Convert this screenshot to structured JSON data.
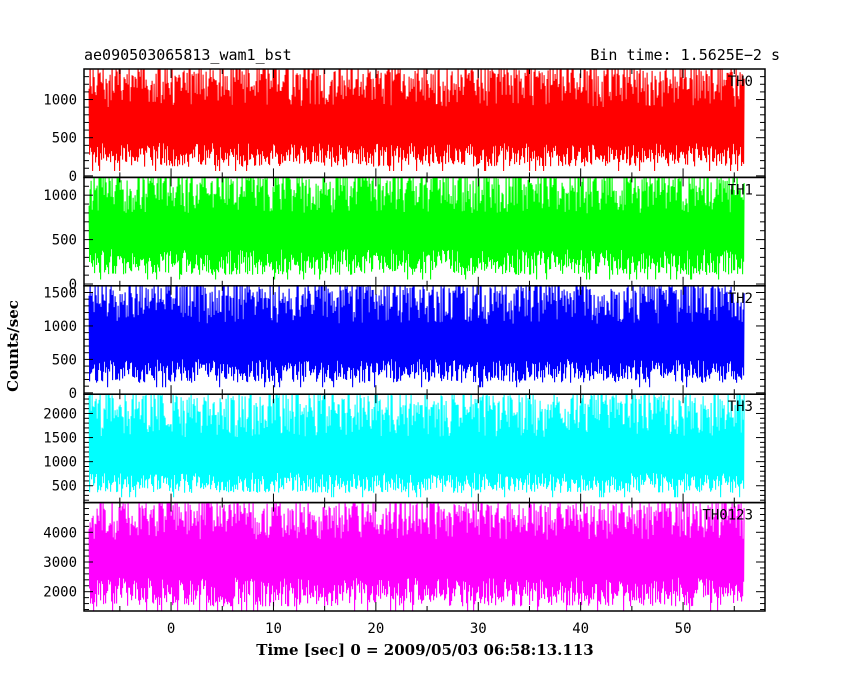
{
  "chart_data": {
    "type": "line",
    "title_left": "ae090503065813_wam1_bst",
    "title_right": "Bin time: 1.5625E−2 s",
    "xlabel": "Time [sec] 0 = 2009/05/03 06:58:13.113",
    "ylabel": "Counts/sec",
    "xlim": [
      -8.5,
      58
    ],
    "data_x_range": [
      -8,
      56
    ],
    "x_ticks": [
      0,
      10,
      20,
      30,
      40,
      50
    ],
    "x_tick_labels": [
      "0",
      "10",
      "20",
      "30",
      "40",
      "50"
    ],
    "grid": false,
    "panels": [
      {
        "name": "TH0",
        "color": "#ff0000",
        "ylim": [
          -20,
          1400
        ],
        "y_ticks": [
          0,
          500,
          1000
        ],
        "y_tick_labels": [
          "0",
          "500",
          "1000"
        ],
        "y_min_typical": 120,
        "y_max_typical": 1450,
        "y_mean": 600
      },
      {
        "name": "TH1",
        "color": "#00ff00",
        "ylim": [
          -20,
          1200
        ],
        "y_ticks": [
          0,
          500,
          1000
        ],
        "y_tick_labels": [
          "0",
          "500",
          "1000"
        ],
        "y_min_typical": 100,
        "y_max_typical": 1250,
        "y_mean": 550
      },
      {
        "name": "TH2",
        "color": "#0000ff",
        "ylim": [
          -20,
          1600
        ],
        "y_ticks": [
          0,
          500,
          1000,
          1500
        ],
        "y_tick_labels": [
          "0",
          "500",
          "1000",
          "1500"
        ],
        "y_min_typical": 150,
        "y_max_typical": 1650,
        "y_mean": 700
      },
      {
        "name": "TH3",
        "color": "#00ffff",
        "ylim": [
          150,
          2400
        ],
        "y_ticks": [
          500,
          1000,
          1500,
          2000
        ],
        "y_tick_labels": [
          "500",
          "1000",
          "1500",
          "2000"
        ],
        "y_min_typical": 350,
        "y_max_typical": 2450,
        "y_mean": 1000
      },
      {
        "name": "TH0123",
        "color": "#ff00ff",
        "ylim": [
          1350,
          5000
        ],
        "y_ticks": [
          2000,
          3000,
          4000
        ],
        "y_tick_labels": [
          "2000",
          "3000",
          "4000"
        ],
        "y_min_typical": 1500,
        "y_max_typical": 5100,
        "y_mean": 3000
      }
    ]
  }
}
